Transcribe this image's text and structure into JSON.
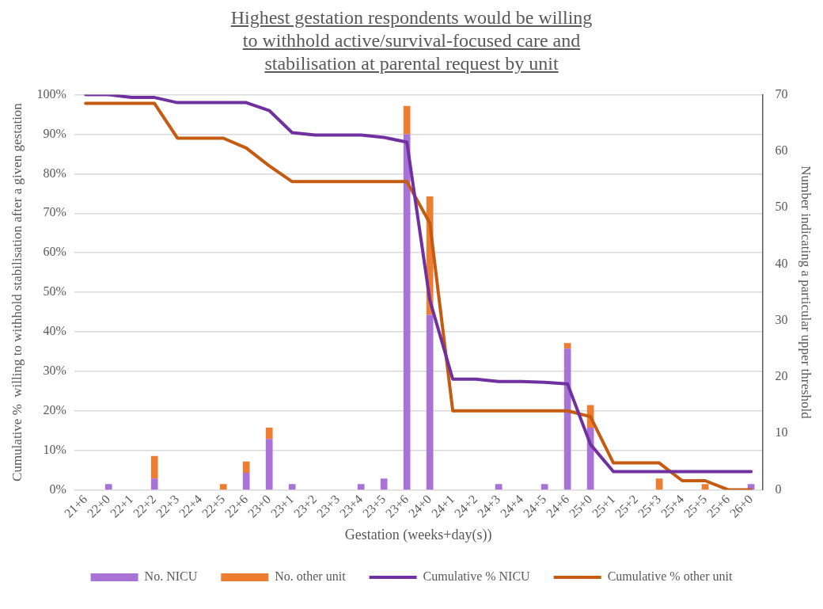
{
  "chart_data": {
    "type": "bar",
    "title": "Highest gestation respondents would be willing\n to withhold active/survival-focused care and\nstabilisation at parental request by unit",
    "xlabel": "Gestation (weeks+day(s))",
    "ylabel": "Cumulative %  willing to withhold stabilisation after a given gestation",
    "y2label": "Number indicating a particular upper threshold",
    "categories": [
      "21+6",
      "22+0",
      "22+1",
      "22+2",
      "22+3",
      "22+4",
      "22+5",
      "22+6",
      "23+0",
      "23+1",
      "23+2",
      "23+3",
      "23+4",
      "23+5",
      "23+6",
      "24+0",
      "24+1",
      "24+2",
      "24+3",
      "24+4",
      "24+5",
      "24+6",
      "25+0",
      "25+1",
      "25+2",
      "25+3",
      "25+4",
      "25+5",
      "25+6",
      "26+0"
    ],
    "stacked": true,
    "legend": "bottom",
    "grid": "y",
    "marker": "none",
    "line_style": "solid",
    "ylim": [
      0,
      100
    ],
    "yticks": [
      {
        "value": 0,
        "label": "0%"
      },
      {
        "value": 10,
        "label": "10%"
      },
      {
        "value": 20,
        "label": "20%"
      },
      {
        "value": 30,
        "label": "30%"
      },
      {
        "value": 40,
        "label": "40%"
      },
      {
        "value": 50,
        "label": "50%"
      },
      {
        "value": 60,
        "label": "60%"
      },
      {
        "value": 70,
        "label": "70%"
      },
      {
        "value": 80,
        "label": "80%"
      },
      {
        "value": 90,
        "label": "90%"
      },
      {
        "value": 100,
        "label": "100%"
      }
    ],
    "y2lim": [
      0,
      70
    ],
    "y2ticks": [
      0,
      10,
      20,
      30,
      40,
      50,
      60,
      70
    ],
    "series": [
      {
        "name": "No. NICU",
        "type": "bar",
        "axis": "y2",
        "color": "#a872d6",
        "values": [
          0,
          1,
          0,
          2,
          0,
          0,
          0,
          3,
          9,
          1,
          0,
          0,
          1,
          2,
          63,
          31,
          0,
          0,
          1,
          0,
          1,
          25,
          11,
          0,
          0,
          0,
          0,
          0,
          0,
          1
        ]
      },
      {
        "name": "No. other unit",
        "type": "bar",
        "axis": "y2",
        "color": "#ed7d31",
        "values": [
          0,
          0,
          0,
          4,
          0,
          0,
          1,
          2,
          2,
          0,
          0,
          0,
          0,
          0,
          5,
          21,
          0,
          0,
          0,
          0,
          0,
          1,
          4,
          0,
          0,
          2,
          0,
          1,
          0,
          0
        ]
      },
      {
        "name": "Cumulative % NICU",
        "type": "line",
        "axis": "y",
        "color": "#7030a0",
        "values": [
          100,
          100,
          99.3,
          99.3,
          98,
          98,
          98,
          98,
          96,
          90.4,
          89.8,
          89.8,
          89.8,
          89.2,
          88,
          48,
          28,
          28,
          27.4,
          27.4,
          27.2,
          26.8,
          11.5,
          4.6,
          4.6,
          4.6,
          4.6,
          4.6,
          4.6,
          4.6
        ]
      },
      {
        "name": "Cumulative % other unit",
        "type": "line",
        "axis": "y",
        "color": "#c55a11",
        "values": [
          97.8,
          97.8,
          97.8,
          97.8,
          89,
          89,
          89,
          86.5,
          82,
          78,
          78,
          78,
          78,
          78,
          78,
          67.5,
          20,
          20,
          20,
          20,
          20,
          20,
          18.5,
          6.8,
          6.8,
          6.8,
          2.3,
          2.3,
          0,
          0
        ]
      }
    ]
  }
}
